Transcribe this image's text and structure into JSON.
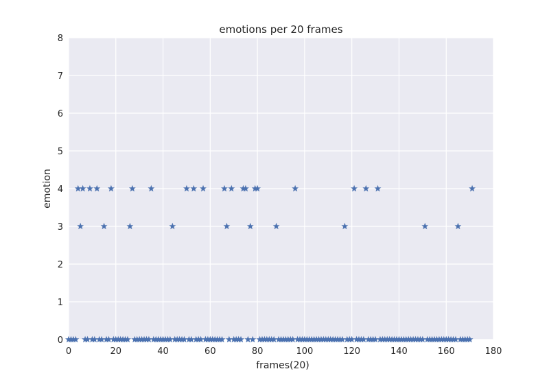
{
  "chart_data": {
    "type": "scatter",
    "title": "emotions per 20 frames",
    "xlabel": "frames(20)",
    "ylabel": "emotion",
    "xlim": [
      0,
      180
    ],
    "ylim": [
      0,
      8
    ],
    "xticks": [
      "0",
      "20",
      "40",
      "60",
      "80",
      "100",
      "120",
      "140",
      "160",
      "180"
    ],
    "yticks": [
      "0",
      "1",
      "2",
      "3",
      "4",
      "5",
      "6",
      "7",
      "8"
    ],
    "grid": true,
    "marker": "star",
    "background_color": "#EAEAF2",
    "marker_color": "#4C72B0",
    "x": [
      0,
      1,
      2,
      3,
      4,
      5,
      6,
      7,
      8,
      9,
      10,
      11,
      12,
      13,
      14,
      15,
      16,
      17,
      18,
      19,
      20,
      21,
      22,
      23,
      24,
      25,
      26,
      27,
      28,
      29,
      30,
      31,
      32,
      33,
      34,
      35,
      36,
      37,
      38,
      39,
      40,
      41,
      42,
      43,
      44,
      45,
      46,
      47,
      48,
      49,
      50,
      51,
      52,
      53,
      54,
      55,
      56,
      57,
      58,
      59,
      60,
      61,
      62,
      63,
      64,
      65,
      66,
      67,
      68,
      69,
      70,
      71,
      72,
      73,
      74,
      75,
      76,
      77,
      78,
      79,
      80,
      81,
      82,
      83,
      84,
      85,
      86,
      87,
      88,
      89,
      90,
      91,
      92,
      93,
      94,
      95,
      96,
      97,
      98,
      99,
      100,
      101,
      102,
      103,
      104,
      105,
      106,
      107,
      108,
      109,
      110,
      111,
      112,
      113,
      114,
      115,
      116,
      117,
      118,
      119,
      120,
      121,
      122,
      123,
      124,
      125,
      126,
      127,
      128,
      129,
      130,
      131,
      132,
      133,
      134,
      135,
      136,
      137,
      138,
      139,
      140,
      141,
      142,
      143,
      144,
      145,
      146,
      147,
      148,
      149,
      150,
      151,
      152,
      153,
      154,
      155,
      156,
      157,
      158,
      159,
      160,
      161,
      162,
      163,
      164,
      165,
      166,
      167,
      168,
      169,
      170,
      171
    ],
    "y": [
      0,
      0,
      0,
      0,
      4,
      3,
      4,
      0,
      0,
      4,
      0,
      0,
      4,
      0,
      0,
      3,
      0,
      0,
      4,
      0,
      0,
      0,
      0,
      0,
      0,
      0,
      3,
      4,
      0,
      0,
      0,
      0,
      0,
      0,
      0,
      4,
      0,
      0,
      0,
      0,
      0,
      0,
      0,
      0,
      3,
      0,
      0,
      0,
      0,
      0,
      4,
      0,
      0,
      4,
      0,
      0,
      0,
      4,
      0,
      0,
      0,
      0,
      0,
      0,
      0,
      0,
      4,
      3,
      0,
      4,
      0,
      0,
      0,
      0,
      4,
      4,
      0,
      3,
      0,
      4,
      4,
      0,
      0,
      0,
      0,
      0,
      0,
      0,
      3,
      0,
      0,
      0,
      0,
      0,
      0,
      0,
      4,
      0,
      0,
      0,
      0,
      0,
      0,
      0,
      0,
      0,
      0,
      0,
      0,
      0,
      0,
      0,
      0,
      0,
      0,
      0,
      0,
      3,
      0,
      0,
      0,
      4,
      0,
      0,
      0,
      0,
      4,
      0,
      0,
      0,
      0,
      4,
      0,
      0,
      0,
      0,
      0,
      0,
      0,
      0,
      0,
      0,
      0,
      0,
      0,
      0,
      0,
      0,
      0,
      0,
      0,
      3,
      0,
      0,
      0,
      0,
      0,
      0,
      0,
      0,
      0,
      0,
      0,
      0,
      0,
      3,
      0,
      0,
      0,
      0,
      0,
      4
    ]
  }
}
